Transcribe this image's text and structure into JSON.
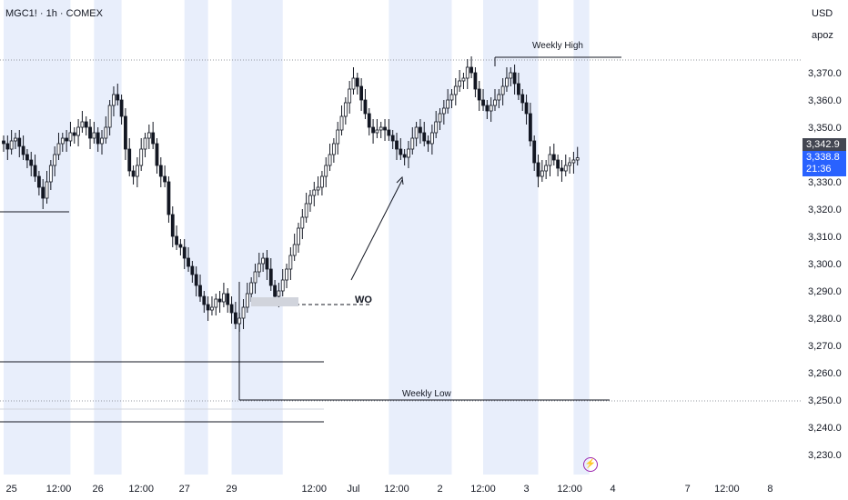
{
  "header": {
    "symbol": "MGC1! · 1h · COMEX",
    "currency": "USD",
    "user": "apoz"
  },
  "price_tags": {
    "last": "3,342.9",
    "current": "3,338.8",
    "countdown": "21:36"
  },
  "annotations": {
    "weekly_high": "Weekly High",
    "weekly_low": "Weekly Low",
    "wo": "WO"
  },
  "colors": {
    "up": "#ffffff",
    "down": "#131722",
    "session_band": "#e8eefb",
    "price_tag_dark": "#434651",
    "price_tag_blue": "#2962ff"
  },
  "icons": {
    "flash": "flash-icon"
  },
  "chart_data": {
    "type": "candlestick",
    "timeframe": "1h",
    "ylim": [
      3225,
      3380
    ],
    "yticks": [
      3230,
      3240,
      3250,
      3260,
      3270,
      3280,
      3290,
      3300,
      3310,
      3320,
      3330,
      3340,
      3350,
      3360,
      3370
    ],
    "ytick_labels": [
      "3,230.0",
      "3,240.0",
      "3,250.0",
      "3,260.0",
      "3,270.0",
      "3,280.0",
      "3,290.0",
      "3,300.0",
      "3,310.0",
      "3,320.0",
      "3,330.0",
      "3,340.0",
      "3,350.0",
      "3,360.0",
      "3,370.0"
    ],
    "xticks": [
      {
        "label": "25",
        "i": 2
      },
      {
        "label": "12:00",
        "i": 14
      },
      {
        "label": "26",
        "i": 24
      },
      {
        "label": "12:00",
        "i": 35
      },
      {
        "label": "27",
        "i": 46
      },
      {
        "label": "29",
        "i": 58
      },
      {
        "label": "12:00",
        "i": 79
      },
      {
        "label": "Jul",
        "i": 89
      },
      {
        "label": "12:00",
        "i": 100
      },
      {
        "label": "2",
        "i": 111
      },
      {
        "label": "12:00",
        "i": 122
      },
      {
        "label": "3",
        "i": 133
      },
      {
        "label": "12:00",
        "i": 144
      },
      {
        "label": "4",
        "i": 155
      },
      {
        "label": "7",
        "i": 174
      },
      {
        "label": "12:00",
        "i": 184
      },
      {
        "label": "8",
        "i": 195
      }
    ],
    "closes": [
      3344,
      3342,
      3345,
      3346,
      3343,
      3340,
      3338,
      3336,
      3332,
      3328,
      3324,
      3330,
      3336,
      3340,
      3344,
      3346,
      3345,
      3348,
      3347,
      3350,
      3352,
      3350,
      3346,
      3348,
      3344,
      3346,
      3350,
      3358,
      3362,
      3360,
      3354,
      3342,
      3334,
      3332,
      3336,
      3342,
      3346,
      3348,
      3344,
      3336,
      3332,
      3330,
      3318,
      3310,
      3307,
      3306,
      3302,
      3299,
      3296,
      3292,
      3288,
      3285,
      3283,
      3284,
      3287,
      3286,
      3289,
      3285,
      3282,
      3278,
      3280,
      3284,
      3289,
      3293,
      3297,
      3300,
      3302,
      3298,
      3292,
      3288,
      3290,
      3294,
      3298,
      3303,
      3307,
      3313,
      3317,
      3322,
      3325,
      3327,
      3328,
      3332,
      3336,
      3340,
      3344,
      3349,
      3354,
      3359,
      3364,
      3368,
      3365,
      3360,
      3355,
      3350,
      3348,
      3349,
      3350,
      3349,
      3347,
      3345,
      3342,
      3340,
      3339,
      3342,
      3346,
      3350,
      3348,
      3345,
      3344,
      3348,
      3352,
      3355,
      3357,
      3360,
      3362,
      3365,
      3367,
      3368,
      3372,
      3370,
      3364,
      3360,
      3358,
      3356,
      3358,
      3360,
      3362,
      3365,
      3368,
      3370,
      3366,
      3362,
      3359,
      3355,
      3345,
      3337,
      3332,
      3334,
      3336,
      3340,
      3338,
      3335,
      3334,
      3336,
      3337,
      3338,
      3338.8
    ],
    "weekly_high": 3375,
    "weekly_low": 3250,
    "wo_level": 3285,
    "levels": [
      3249,
      3242,
      3264,
      3319
    ]
  }
}
